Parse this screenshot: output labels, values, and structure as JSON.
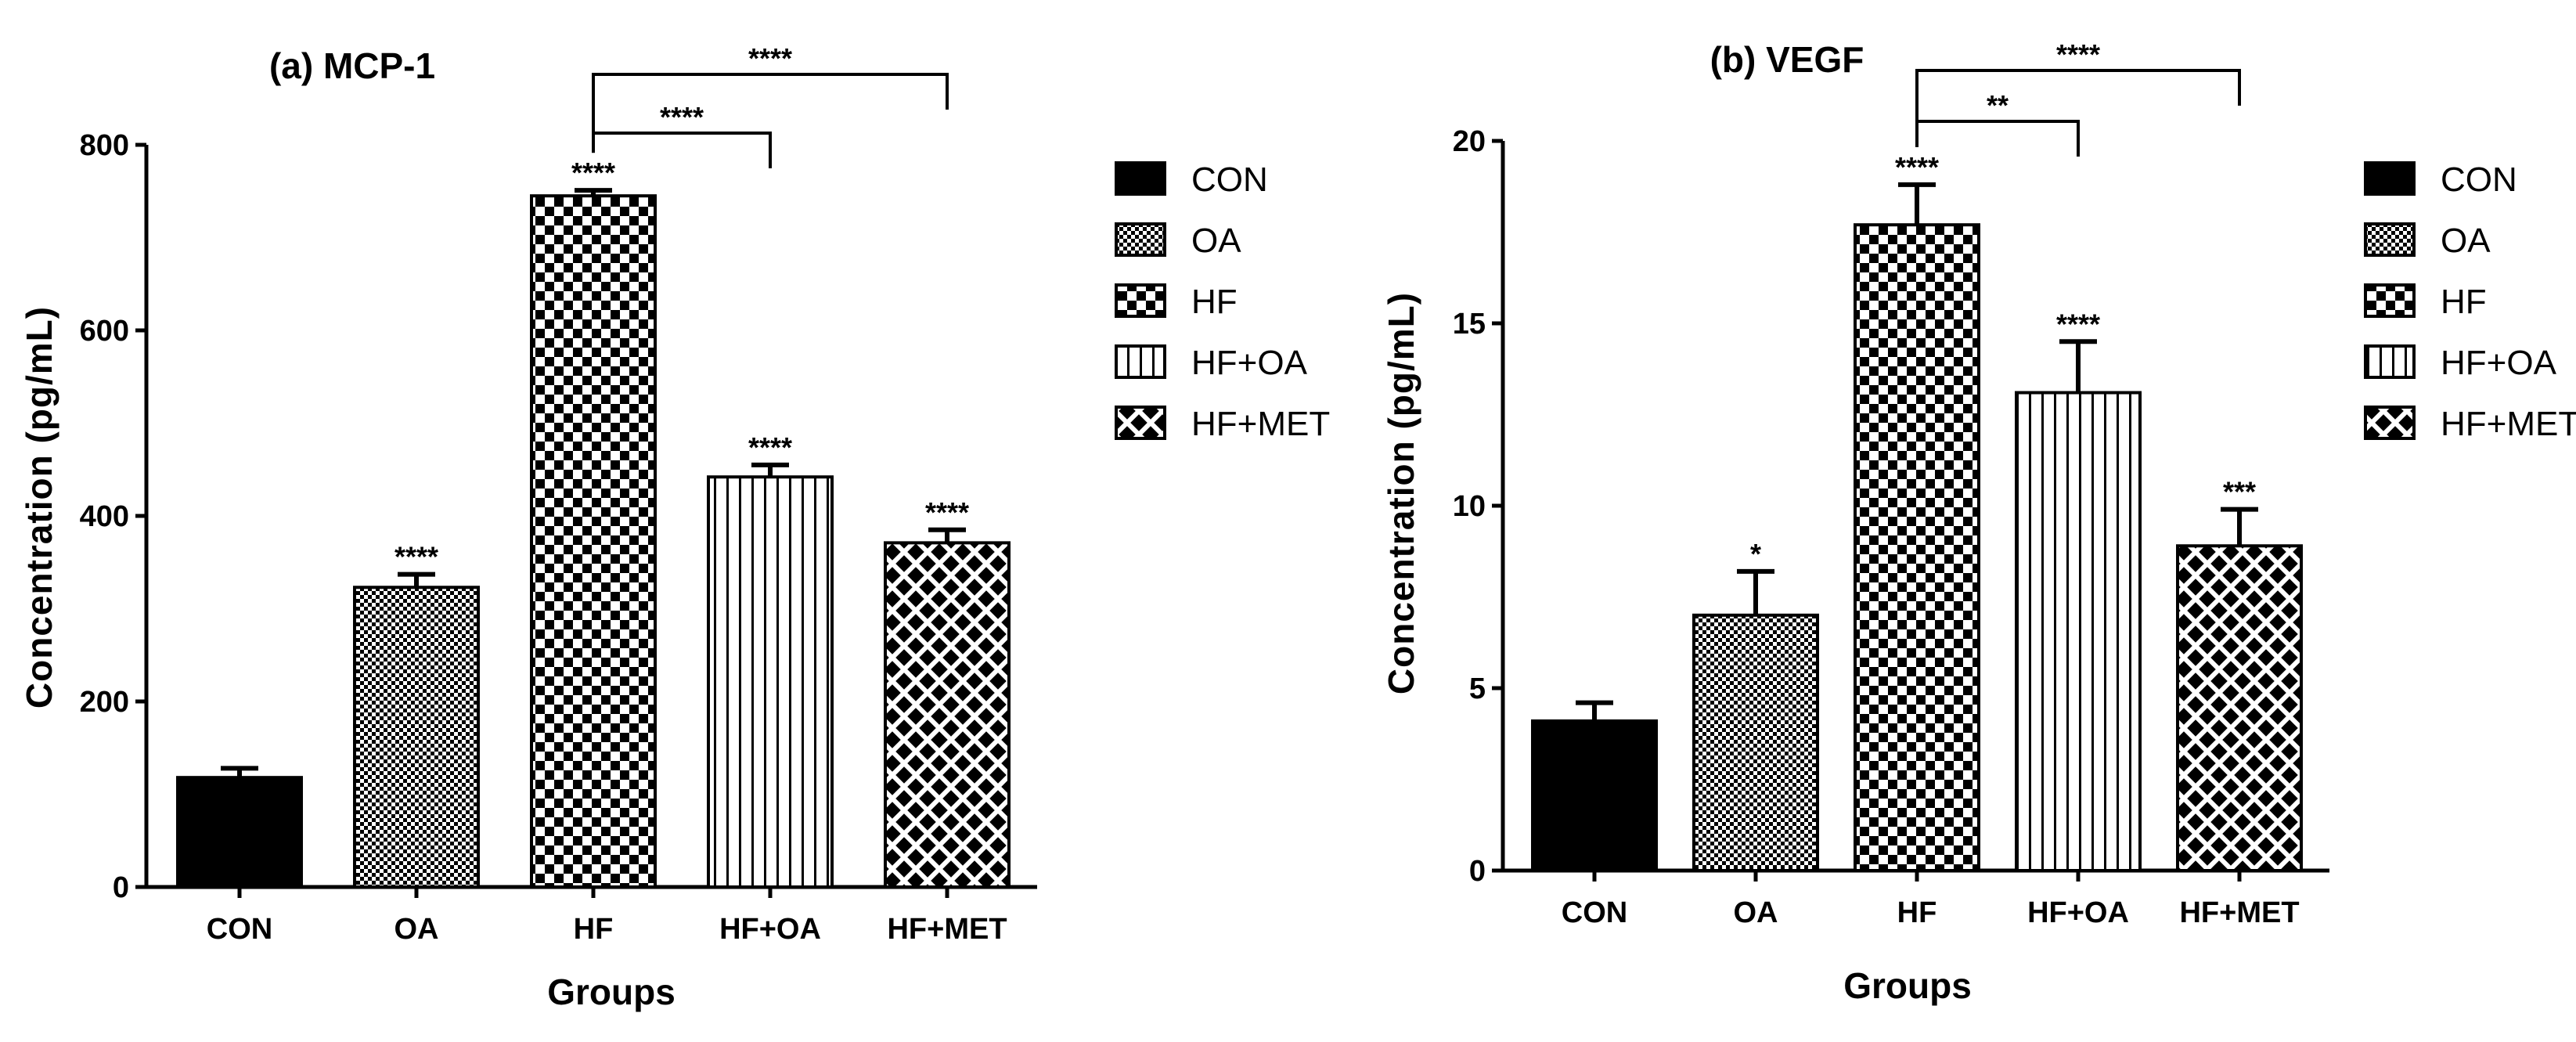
{
  "chart_data": [
    {
      "type": "bar",
      "title": "(a) MCP-1",
      "xlabel": "Groups",
      "ylabel": "Concentration (pg/mL)",
      "categories": [
        "CON",
        "OA",
        "HF",
        "HF+OA",
        "HF+MET"
      ],
      "values": [
        118,
        323,
        745,
        442,
        371
      ],
      "errors": [
        10,
        14,
        6,
        13,
        14
      ],
      "labels": [
        "",
        "****",
        "****",
        "****",
        "****"
      ],
      "ylim": [
        0,
        800
      ],
      "yticks": [
        0,
        200,
        400,
        600,
        800
      ],
      "comparisons": [
        {
          "from": "HF",
          "to": "HF+OA",
          "label": "****"
        },
        {
          "from": "HF",
          "to": "HF+MET",
          "label": "****"
        }
      ],
      "legend": [
        "CON",
        "OA",
        "HF",
        "HF+OA",
        "HF+MET"
      ],
      "legend_position": "right"
    },
    {
      "type": "bar",
      "title": "(b) VEGF",
      "xlabel": "Groups",
      "ylabel": "Concentration (pg/mL)",
      "categories": [
        "CON",
        "OA",
        "HF",
        "HF+OA",
        "HF+MET"
      ],
      "values": [
        4.1,
        7.0,
        17.7,
        13.1,
        8.9
      ],
      "errors": [
        0.5,
        1.2,
        1.1,
        1.4,
        1.0
      ],
      "labels": [
        "",
        "*",
        "****",
        "****",
        "***"
      ],
      "ylim": [
        0,
        20
      ],
      "yticks": [
        0,
        5,
        10,
        15,
        20
      ],
      "comparisons": [
        {
          "from": "HF",
          "to": "HF+OA",
          "label": "**"
        },
        {
          "from": "HF",
          "to": "HF+MET",
          "label": "****"
        }
      ],
      "legend": [
        "CON",
        "OA",
        "HF",
        "HF+OA",
        "HF+MET"
      ],
      "legend_position": "right"
    }
  ],
  "patterns": [
    "solid",
    "dots",
    "checker",
    "vstripes",
    "crosshatch"
  ]
}
